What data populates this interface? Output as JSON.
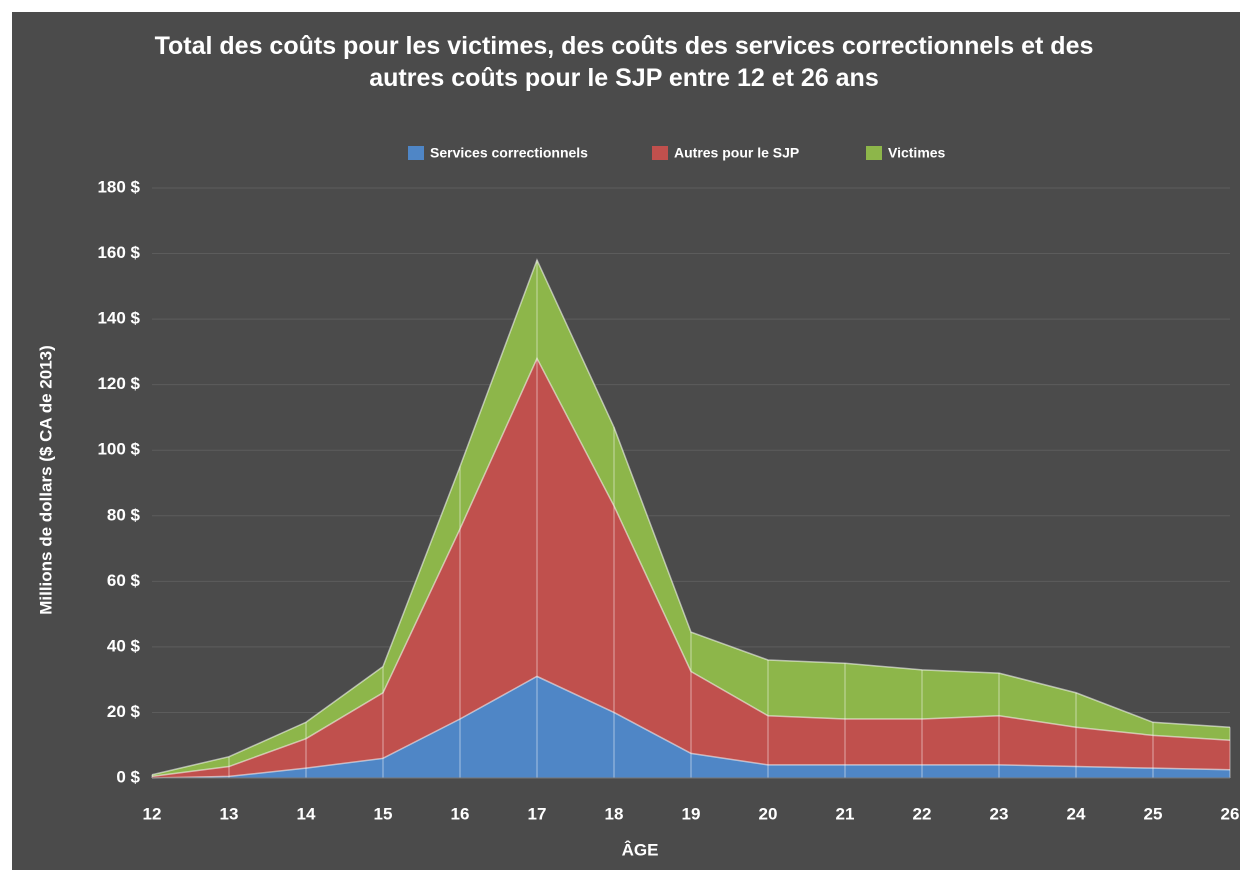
{
  "chart_data": {
    "type": "stacked_area",
    "title": "Total des coûts pour les victimes, des coûts des services correctionnels et des autres coûts pour le SJP entre 12 et 26 ans",
    "x_label": "ÂGE",
    "y_label": "Millions de dollars ($ CA de 2013)",
    "x": [
      12,
      13,
      14,
      15,
      16,
      17,
      18,
      19,
      20,
      21,
      22,
      23,
      24,
      25,
      26
    ],
    "series": [
      {
        "name": "Services correctionnels",
        "color": "#4f86c6",
        "values": [
          0,
          0.5,
          3,
          6,
          18,
          31,
          20,
          7.5,
          4,
          4,
          4,
          4,
          3.5,
          3,
          2.5
        ]
      },
      {
        "name": "Autres pour le SJP",
        "color": "#c0504d",
        "values": [
          0.5,
          3,
          9,
          20,
          58,
          97,
          63,
          25,
          15,
          14,
          14,
          15,
          12,
          10,
          9
        ]
      },
      {
        "name": "Victimes",
        "color": "#8db64a",
        "values": [
          0.5,
          3,
          5,
          8,
          19,
          30,
          24,
          12,
          17,
          17,
          15,
          13,
          10.5,
          4,
          4
        ]
      }
    ],
    "xlim": [
      12,
      26
    ],
    "xticks": [
      12,
      13,
      14,
      15,
      16,
      17,
      18,
      19,
      20,
      21,
      22,
      23,
      24,
      25,
      26
    ],
    "ylim": [
      0,
      180
    ],
    "yticks": [
      {
        "value": 0,
        "label": "0 $"
      },
      {
        "value": 20,
        "label": "20 $"
      },
      {
        "value": 40,
        "label": "40 $"
      },
      {
        "value": 60,
        "label": "60 $"
      },
      {
        "value": 80,
        "label": "80 $"
      },
      {
        "value": 100,
        "label": "100 $"
      },
      {
        "value": 120,
        "label": "120 $"
      },
      {
        "value": 140,
        "label": "140 $"
      },
      {
        "value": 160,
        "label": "160 $"
      },
      {
        "value": 180,
        "label": "180 $"
      }
    ],
    "grid": true,
    "legend": "top"
  }
}
